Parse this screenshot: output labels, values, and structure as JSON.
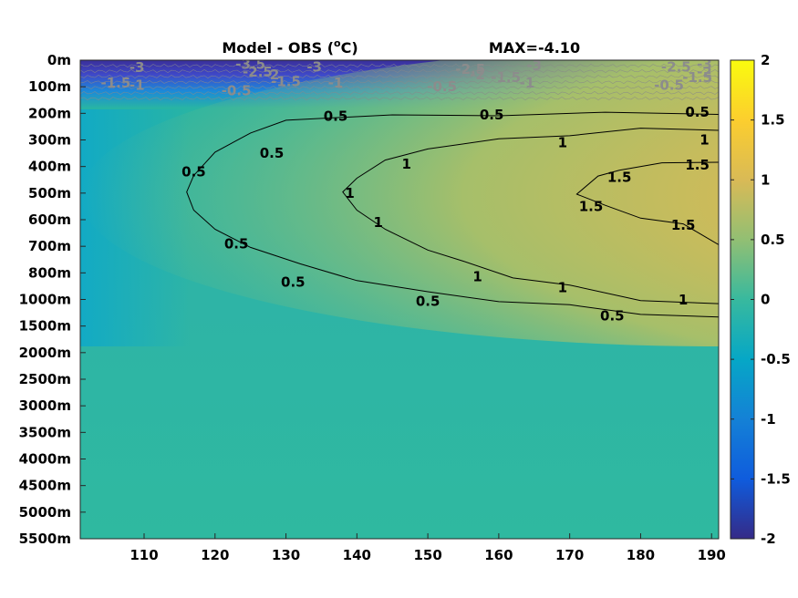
{
  "chart_data": {
    "type": "heatmap",
    "title": "Model - OBS (°C)",
    "title_base": "Model - OBS (",
    "title_sup": "o",
    "title_unit": "C)",
    "max_text": "MAX=-4.10",
    "x_ticks": [
      110,
      120,
      130,
      140,
      150,
      160,
      170,
      180,
      190
    ],
    "xlim": [
      101,
      191
    ],
    "depth_ticks": [
      "0m",
      "100m",
      "200m",
      "300m",
      "400m",
      "500m",
      "600m",
      "700m",
      "800m",
      "1000m",
      "1500m",
      "2000m",
      "2500m",
      "3000m",
      "3500m",
      "4000m",
      "4500m",
      "5000m",
      "5500m"
    ],
    "depth_values": [
      0,
      100,
      200,
      300,
      400,
      500,
      600,
      700,
      800,
      1000,
      1500,
      2000,
      2500,
      3000,
      3500,
      4000,
      4500,
      5000,
      5500
    ],
    "colorbar": {
      "min": -2,
      "max": 2,
      "ticks": [
        "2",
        "1.5",
        "1",
        "0.5",
        "0",
        "-0.5",
        "-1",
        "-1.5",
        "-2"
      ],
      "colormap": "parula"
    },
    "contours_positive": [
      {
        "level": "0.5",
        "points": [
          [
            191,
            200
          ],
          [
            175,
            200
          ],
          [
            160,
            205
          ],
          [
            145,
            210
          ],
          [
            135,
            215
          ],
          [
            130,
            230
          ],
          [
            125,
            270
          ],
          [
            120,
            350
          ],
          [
            117,
            430
          ],
          [
            116,
            500
          ],
          [
            117,
            560
          ],
          [
            120,
            640
          ],
          [
            125,
            700
          ],
          [
            132,
            770
          ],
          [
            140,
            850
          ],
          [
            150,
            950
          ],
          [
            160,
            1020
          ],
          [
            170,
            1120
          ],
          [
            180,
            1260
          ],
          [
            191,
            1350
          ]
        ]
      },
      {
        "level": "1",
        "points": [
          [
            191,
            260
          ],
          [
            180,
            260
          ],
          [
            170,
            280
          ],
          [
            160,
            300
          ],
          [
            150,
            330
          ],
          [
            144,
            380
          ],
          [
            140,
            440
          ],
          [
            138,
            500
          ],
          [
            140,
            560
          ],
          [
            144,
            640
          ],
          [
            150,
            710
          ],
          [
            155,
            760
          ],
          [
            162,
            830
          ],
          [
            170,
            900
          ],
          [
            180,
            1000
          ],
          [
            191,
            1100
          ]
        ]
      },
      {
        "level": "1.5",
        "points": [
          [
            191,
            380
          ],
          [
            183,
            390
          ],
          [
            177,
            410
          ],
          [
            174,
            440
          ],
          [
            171,
            500
          ],
          [
            175,
            550
          ],
          [
            180,
            590
          ],
          [
            186,
            620
          ],
          [
            191,
            690
          ]
        ]
      }
    ],
    "contour_labels": [
      {
        "text": "0.5",
        "x": 128,
        "y": 350
      },
      {
        "text": "0.5",
        "x": 117,
        "y": 420
      },
      {
        "text": "0.5",
        "x": 137,
        "y": 210
      },
      {
        "text": "0.5",
        "x": 159,
        "y": 205
      },
      {
        "text": "0.5",
        "x": 188,
        "y": 195
      },
      {
        "text": "0.5",
        "x": 123,
        "y": 690
      },
      {
        "text": "0.5",
        "x": 131,
        "y": 870
      },
      {
        "text": "0.5",
        "x": 150,
        "y": 1030
      },
      {
        "text": "0.5",
        "x": 176,
        "y": 1310
      },
      {
        "text": "1",
        "x": 147,
        "y": 390
      },
      {
        "text": "1",
        "x": 139,
        "y": 500
      },
      {
        "text": "1",
        "x": 169,
        "y": 310
      },
      {
        "text": "1",
        "x": 189,
        "y": 300
      },
      {
        "text": "1",
        "x": 143,
        "y": 610
      },
      {
        "text": "1",
        "x": 157,
        "y": 830
      },
      {
        "text": "1",
        "x": 169,
        "y": 910
      },
      {
        "text": "1",
        "x": 186,
        "y": 1010
      },
      {
        "text": "1.5",
        "x": 177,
        "y": 440
      },
      {
        "text": "1.5",
        "x": 173,
        "y": 550
      },
      {
        "text": "1.5",
        "x": 186,
        "y": 620
      },
      {
        "text": "1.5",
        "x": 188,
        "y": 395
      }
    ],
    "surface_labels": [
      {
        "text": "-3",
        "x": 109,
        "y": 28
      },
      {
        "text": "-3.5",
        "x": 125,
        "y": 15
      },
      {
        "text": "-2.5",
        "x": 126,
        "y": 45
      },
      {
        "text": "-2",
        "x": 128,
        "y": 55
      },
      {
        "text": "-3",
        "x": 134,
        "y": 25
      },
      {
        "text": "-1.5",
        "x": 106,
        "y": 85
      },
      {
        "text": "-1",
        "x": 109,
        "y": 95
      },
      {
        "text": "-1.5",
        "x": 130,
        "y": 80
      },
      {
        "text": "-1",
        "x": 137,
        "y": 85
      },
      {
        "text": "-0.5",
        "x": 123,
        "y": 115
      },
      {
        "text": "-2.5",
        "x": 156,
        "y": 35
      },
      {
        "text": "-2",
        "x": 157,
        "y": 55
      },
      {
        "text": "-1.5",
        "x": 161,
        "y": 65
      },
      {
        "text": "-1",
        "x": 164,
        "y": 85
      },
      {
        "text": "-0.5",
        "x": 152,
        "y": 100
      },
      {
        "text": "-3",
        "x": 165,
        "y": 20
      },
      {
        "text": "-2.5",
        "x": 185,
        "y": 25
      },
      {
        "text": "-3",
        "x": 189,
        "y": 15
      },
      {
        "text": "-2",
        "x": 189,
        "y": 45
      },
      {
        "text": "-1.5",
        "x": 188,
        "y": 65
      },
      {
        "text": "-0.5",
        "x": 184,
        "y": 95
      }
    ]
  }
}
